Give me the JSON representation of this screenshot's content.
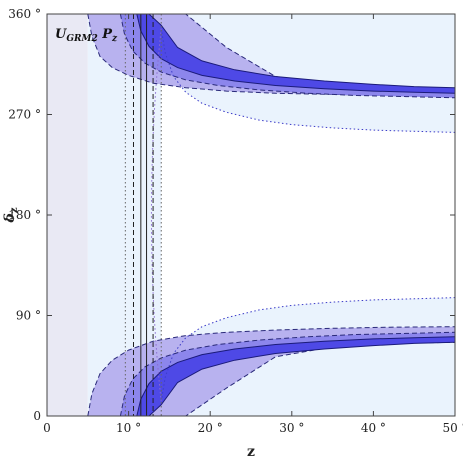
{
  "chart_data": {
    "type": "area",
    "title": "",
    "panel_label": {
      "base": "U",
      "subscript": "GRM2",
      "suffix_base": "P",
      "suffix_subscript": "z"
    },
    "xlabel": "z",
    "ylabel": "δz",
    "xlim": [
      0,
      50
    ],
    "ylim": [
      0,
      360
    ],
    "x_ticks": [
      {
        "value": 0,
        "label": "0"
      },
      {
        "value": 10,
        "label": "10 °"
      },
      {
        "value": 20,
        "label": "20 °"
      },
      {
        "value": 30,
        "label": "30 °"
      },
      {
        "value": 40,
        "label": "40 °"
      },
      {
        "value": 50,
        "label": "50 °"
      }
    ],
    "y_ticks": [
      {
        "value": 0,
        "label": "0"
      },
      {
        "value": 90,
        "label": "90 °"
      },
      {
        "value": 180,
        "label": "180 °"
      },
      {
        "value": 270,
        "label": "270 °"
      },
      {
        "value": 360,
        "label": "360 °"
      }
    ],
    "grid": false,
    "colors": {
      "frame": "#444444",
      "band_excluded": "#e9e9f4",
      "band_outer": "#eaf3fd",
      "band_3sigma": "#b8b2ef",
      "band_2sigma": "#8c86ec",
      "band_1sigma": "#4e49e6",
      "line_solid": "#1b1b7a",
      "line_dashed": "#2a2a7a",
      "line_dotted": "#3c3cc8",
      "line_vertical": "#222222",
      "line_vertical_dotted": "#666666"
    },
    "excluded_region": {
      "z_min": 0,
      "z_max": 5
    },
    "vertical_lines": [
      {
        "z": 11.5,
        "style": "solid"
      },
      {
        "z": 12.2,
        "style": "solid"
      },
      {
        "z": 10.6,
        "style": "dashed"
      },
      {
        "z": 13.0,
        "style": "dashed"
      },
      {
        "z": 9.6,
        "style": "dotted"
      },
      {
        "z": 14.0,
        "style": "dotted"
      }
    ],
    "series": [
      {
        "name": "",
        "level": "outer",
        "style": "dotted",
        "upper": {
          "z": [
            14.0,
            14.5,
            15.5,
            17,
            19,
            22,
            26,
            30,
            35,
            40,
            45,
            50
          ],
          "delta": [
            13,
            35,
            56,
            70,
            80,
            88,
            95,
            99,
            102,
            104,
            105,
            106
          ]
        },
        "lower": {
          "z": [
            14.0,
            14.5,
            15.5,
            17,
            19,
            22,
            26,
            30,
            35,
            40,
            45,
            50
          ],
          "delta": [
            347,
            325,
            304,
            290,
            280,
            272,
            265,
            261,
            258,
            256,
            255,
            254
          ]
        }
      },
      {
        "name": "",
        "level": "3sigma",
        "style": "dashed",
        "lower_branch": {
          "z": [
            5.0,
            5.5,
            6.5,
            8,
            10,
            13,
            17,
            22,
            28,
            35,
            42,
            50
          ],
          "outer": [
            0,
            20,
            38,
            50,
            59,
            67,
            72,
            75,
            77,
            78.5,
            79.5,
            80
          ],
          "inner": [
            0,
            0,
            0,
            0,
            0,
            0,
            0,
            25,
            53,
            62,
            65,
            66
          ]
        },
        "upper_branch": {
          "z": [
            5.0,
            5.5,
            6.5,
            8,
            10,
            13,
            17,
            22,
            28,
            35,
            42,
            50
          ],
          "outer": [
            360,
            340,
            322,
            312,
            305,
            298,
            294,
            291,
            289,
            288,
            287,
            286
          ],
          "inner": [
            360,
            360,
            360,
            360,
            360,
            360,
            360,
            330,
            304,
            296,
            292,
            290
          ]
        }
      },
      {
        "name": "",
        "level": "2sigma",
        "style": "dashed",
        "lower_branch": {
          "z": [
            9.0,
            9.5,
            10.5,
            12,
            14,
            17,
            21,
            26,
            32,
            38,
            44,
            50
          ],
          "outer": [
            0,
            18,
            33,
            44,
            52,
            59,
            64,
            68,
            71,
            73,
            74,
            75
          ],
          "inner": [
            0,
            0,
            0,
            0,
            12,
            40,
            52,
            59,
            64,
            67,
            69,
            70
          ]
        },
        "upper_branch": {
          "z": [
            9.0,
            9.5,
            10.5,
            12,
            14,
            17,
            21,
            26,
            32,
            38,
            44,
            50
          ],
          "outer": [
            360,
            342,
            327,
            316,
            308,
            301,
            296,
            292,
            289,
            287,
            286,
            285
          ],
          "inner": [
            360,
            360,
            360,
            360,
            348,
            320,
            308,
            301,
            296,
            293,
            291,
            290
          ]
        }
      },
      {
        "name": "",
        "level": "1sigma",
        "style": "solid",
        "lower_branch": {
          "z": [
            11.0,
            11.5,
            12.5,
            14,
            16,
            19,
            23,
            28,
            34,
            40,
            45,
            50
          ],
          "outer": [
            0,
            15,
            29,
            40,
            48,
            55,
            60,
            64,
            67,
            69,
            70,
            71
          ],
          "inner": [
            0,
            0,
            0,
            10,
            30,
            42,
            50,
            56,
            60,
            63,
            65,
            66
          ]
        },
        "upper_branch": {
          "z": [
            11.0,
            11.5,
            12.5,
            14,
            16,
            19,
            23,
            28,
            34,
            40,
            45,
            50
          ],
          "outer": [
            360,
            345,
            331,
            320,
            312,
            305,
            300,
            296,
            293,
            291,
            290,
            289
          ],
          "inner": [
            360,
            360,
            360,
            350,
            330,
            318,
            310,
            304,
            300,
            297,
            295,
            294
          ]
        }
      }
    ]
  }
}
